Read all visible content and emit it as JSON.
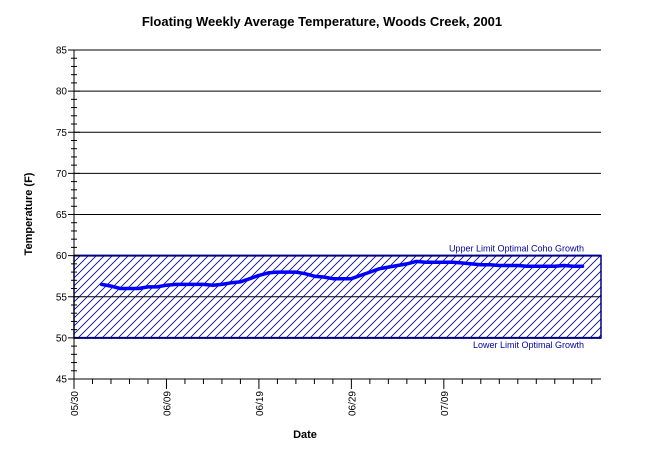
{
  "chart_data": {
    "type": "line",
    "title": "Floating Weekly Average Temperature, Woods Creek, 2001",
    "xlabel": "Date",
    "ylabel": "Temperature (F)",
    "ylim": [
      45,
      85
    ],
    "xlim_days": [
      0,
      57
    ],
    "yticks": [
      45,
      50,
      55,
      60,
      65,
      70,
      75,
      80,
      85
    ],
    "xticks": [
      {
        "day": 0,
        "label": "05/30"
      },
      {
        "day": 10,
        "label": "06/09"
      },
      {
        "day": 20,
        "label": "06/19"
      },
      {
        "day": 30,
        "label": "06/29"
      },
      {
        "day": 40,
        "label": "07/09"
      }
    ],
    "grid": true,
    "band": {
      "lower": 50,
      "upper": 60,
      "upper_label": "Upper Limit Optimal Coho Growth",
      "lower_label": "Lower Limit Optimal Growth",
      "color": "#00008b"
    },
    "series": [
      {
        "color": "#0000ff",
        "x_dates": [
          "06/02",
          "06/03",
          "06/04",
          "06/05",
          "06/06",
          "06/07",
          "06/08",
          "06/09",
          "06/10",
          "06/11",
          "06/12",
          "06/13",
          "06/14",
          "06/15",
          "06/16",
          "06/17",
          "06/18",
          "06/19",
          "06/20",
          "06/21",
          "06/22",
          "06/23",
          "06/24",
          "06/25",
          "06/26",
          "06/27",
          "06/28",
          "06/29",
          "06/30",
          "07/01",
          "07/02",
          "07/03",
          "07/04",
          "07/05",
          "07/06",
          "07/07",
          "07/08",
          "07/09",
          "07/10",
          "07/11",
          "07/12",
          "07/13",
          "07/14",
          "07/15",
          "07/16",
          "07/17",
          "07/18",
          "07/19",
          "07/20",
          "07/21",
          "07/22",
          "07/23",
          "07/24"
        ],
        "x": [
          3,
          4,
          5,
          6,
          7,
          8,
          9,
          10,
          11,
          12,
          13,
          14,
          15,
          16,
          17,
          18,
          19,
          20,
          21,
          22,
          23,
          24,
          25,
          26,
          27,
          28,
          29,
          30,
          31,
          32,
          33,
          34,
          35,
          36,
          37,
          38,
          39,
          40,
          41,
          42,
          43,
          44,
          45,
          46,
          47,
          48,
          49,
          50,
          51,
          52,
          53,
          54,
          55
        ],
        "values": [
          56.5,
          56.3,
          56.0,
          56.0,
          56.0,
          56.2,
          56.2,
          56.4,
          56.5,
          56.5,
          56.5,
          56.5,
          56.4,
          56.5,
          56.7,
          56.8,
          57.2,
          57.6,
          57.9,
          58.0,
          58.0,
          58.0,
          57.8,
          57.5,
          57.4,
          57.2,
          57.2,
          57.2,
          57.6,
          58.0,
          58.4,
          58.6,
          58.8,
          59.0,
          59.3,
          59.2,
          59.2,
          59.2,
          59.2,
          59.1,
          59.0,
          58.9,
          58.9,
          58.8,
          58.8,
          58.8,
          58.7,
          58.7,
          58.7,
          58.7,
          58.8,
          58.7,
          58.7
        ]
      }
    ]
  }
}
